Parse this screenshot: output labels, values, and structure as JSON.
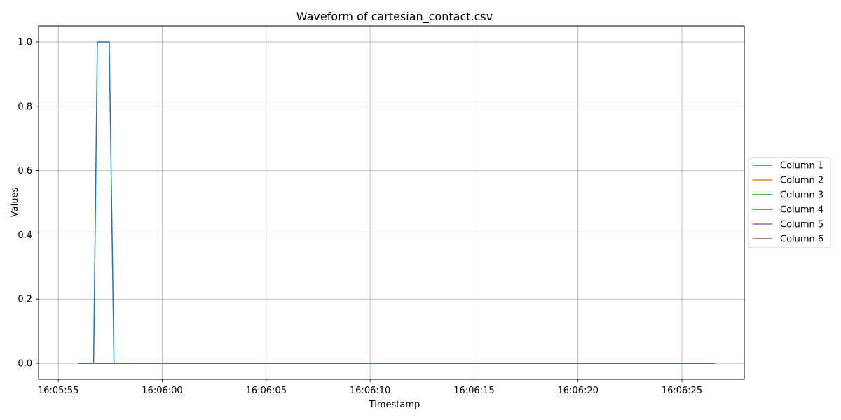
{
  "chart_data": {
    "type": "line",
    "title": "Waveform of cartesian_contact.csv",
    "xlabel": "Timestamp",
    "ylabel": "Values",
    "x_unit": "seconds since 16:05:55",
    "xlim": [
      -0.95,
      33.0
    ],
    "ylim": [
      -0.05,
      1.05
    ],
    "x_ticks": [
      {
        "value": 0,
        "label": "16:05:55"
      },
      {
        "value": 5,
        "label": "16:06:00"
      },
      {
        "value": 10,
        "label": "16:06:05"
      },
      {
        "value": 15,
        "label": "16:06:10"
      },
      {
        "value": 20,
        "label": "16:06:15"
      },
      {
        "value": 25,
        "label": "16:06:20"
      },
      {
        "value": 30,
        "label": "16:06:25"
      }
    ],
    "y_ticks": [
      {
        "value": 0.0,
        "label": "0.0"
      },
      {
        "value": 0.2,
        "label": "0.2"
      },
      {
        "value": 0.4,
        "label": "0.4"
      },
      {
        "value": 0.6,
        "label": "0.6"
      },
      {
        "value": 0.8,
        "label": "0.8"
      },
      {
        "value": 1.0,
        "label": "1.0"
      }
    ],
    "grid": true,
    "legend_position": "outside-right",
    "series": [
      {
        "name": "Column 1",
        "color": "#1f77b4",
        "x": [
          0.95,
          1.7,
          1.88,
          2.45,
          2.68,
          31.6
        ],
        "y": [
          0,
          0,
          1,
          1,
          0,
          0
        ]
      },
      {
        "name": "Column 2",
        "color": "#ff7f0e",
        "x": [
          0.95,
          31.6
        ],
        "y": [
          0,
          0
        ]
      },
      {
        "name": "Column 3",
        "color": "#2ca02c",
        "x": [
          0.95,
          31.6
        ],
        "y": [
          0,
          0
        ]
      },
      {
        "name": "Column 4",
        "color": "#d62728",
        "x": [
          0.95,
          31.6
        ],
        "y": [
          0,
          0
        ]
      },
      {
        "name": "Column 5",
        "color": "#9467bd",
        "x": [
          0.95,
          31.6
        ],
        "y": [
          0,
          0
        ]
      },
      {
        "name": "Column 6",
        "color": "#8c564b",
        "x": [
          0.95,
          31.6
        ],
        "y": [
          0,
          0
        ]
      }
    ]
  }
}
